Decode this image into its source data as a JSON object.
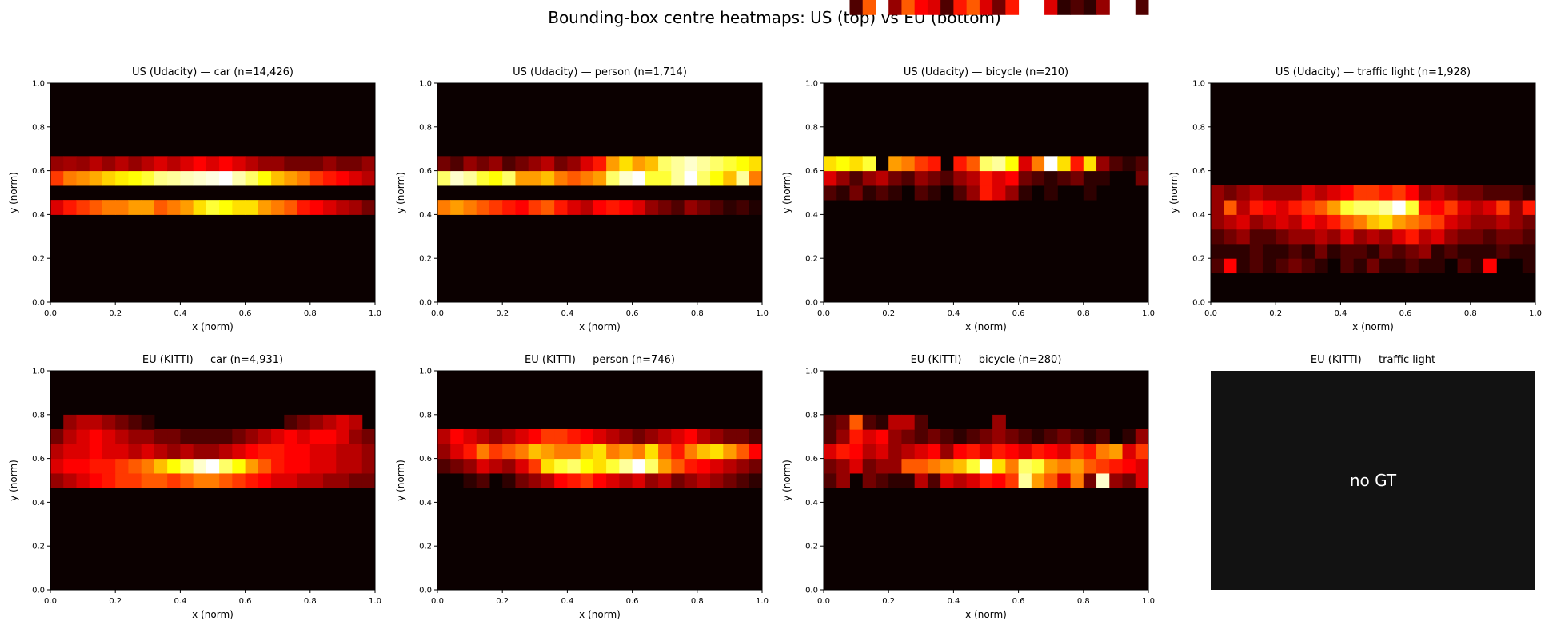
{
  "suptitle": "Bounding-box centre heatmaps: US (top) vs EU (bottom)",
  "colormap": "hot",
  "colors": {
    "background": "#ffffff",
    "no_data_panel": "#121212",
    "no_data_text": "#ffffff"
  },
  "chart_data": [
    {
      "type": "heatmap",
      "title": "US (Udacity) — car  (n=14,426)",
      "xlabel": "x (norm)",
      "ylabel": "y (norm)",
      "xlim": [
        0,
        1
      ],
      "ylim": [
        0,
        1
      ],
      "xticks": [
        "0.0",
        "0.2",
        "0.4",
        "0.6",
        "0.8",
        "1.0"
      ],
      "yticks": [
        "0.0",
        "0.2",
        "0.4",
        "0.6",
        "0.8",
        "1.0"
      ],
      "bins": [
        25,
        15
      ],
      "band": {
        "y": [
          0.4,
          0.533,
          0.6
        ],
        "rows": [
          [
            0.3,
            0.4,
            0.45,
            0.5,
            0.55,
            0.55,
            0.6,
            0.6,
            0.5,
            0.55,
            0.6,
            0.7,
            0.8,
            0.75,
            0.7,
            0.7,
            0.6,
            0.55,
            0.5,
            0.4,
            0.35,
            0.3,
            0.25,
            0.22,
            0.15
          ],
          [
            0.45,
            0.55,
            0.58,
            0.62,
            0.68,
            0.72,
            0.75,
            0.8,
            0.88,
            0.9,
            0.93,
            0.95,
            0.97,
            1.0,
            0.92,
            0.85,
            0.75,
            0.65,
            0.6,
            0.55,
            0.45,
            0.4,
            0.35,
            0.3,
            0.25
          ],
          [
            0.2,
            0.22,
            0.2,
            0.25,
            0.2,
            0.25,
            0.2,
            0.25,
            0.3,
            0.25,
            0.3,
            0.35,
            0.3,
            0.35,
            0.3,
            0.25,
            0.2,
            0.2,
            0.15,
            0.15,
            0.15,
            0.2,
            0.15,
            0.15,
            0.2
          ]
        ]
      }
    },
    {
      "type": "heatmap",
      "title": "US (Udacity) — person  (n=1,714)",
      "xlabel": "x (norm)",
      "ylabel": "y (norm)",
      "xlim": [
        0,
        1
      ],
      "ylim": [
        0,
        1
      ],
      "xticks": [
        "0.0",
        "0.2",
        "0.4",
        "0.6",
        "0.8",
        "1.0"
      ],
      "yticks": [
        "0.0",
        "0.2",
        "0.4",
        "0.6",
        "0.8",
        "1.0"
      ],
      "bins": [
        25,
        15
      ],
      "band": {
        "y": [
          0.4,
          0.533,
          0.6
        ],
        "rows": [
          [
            0.55,
            0.6,
            0.55,
            0.5,
            0.45,
            0.4,
            0.35,
            0.45,
            0.5,
            0.4,
            0.3,
            0.25,
            0.35,
            0.4,
            0.35,
            0.3,
            0.2,
            0.15,
            0.1,
            0.2,
            0.15,
            0.1,
            0.05,
            0.08,
            0.03
          ],
          [
            0.85,
            0.95,
            0.9,
            0.8,
            0.75,
            0.85,
            0.6,
            0.6,
            0.65,
            0.55,
            0.5,
            0.55,
            0.6,
            0.85,
            0.95,
            1.0,
            0.8,
            0.8,
            0.9,
            1.0,
            0.85,
            0.75,
            0.65,
            0.9,
            0.55
          ],
          [
            0.15,
            0.1,
            0.2,
            0.15,
            0.2,
            0.1,
            0.15,
            0.2,
            0.25,
            0.15,
            0.2,
            0.3,
            0.4,
            0.6,
            0.7,
            0.6,
            0.65,
            0.85,
            0.9,
            0.95,
            0.9,
            0.85,
            0.8,
            0.75,
            0.7
          ]
        ]
      }
    },
    {
      "type": "heatmap",
      "title": "US (Udacity) — bicycle  (n=210)",
      "xlabel": "x (norm)",
      "ylabel": "y (norm)",
      "xlim": [
        0,
        1
      ],
      "ylim": [
        0,
        1
      ],
      "xticks": [
        "0.0",
        "0.2",
        "0.4",
        "0.6",
        "0.8",
        "1.0"
      ],
      "yticks": [
        "0.0",
        "0.2",
        "0.4",
        "0.6",
        "0.8",
        "1.0"
      ],
      "bins": [
        25,
        15
      ],
      "band": {
        "y": [
          0.467,
          0.533,
          0.6
        ],
        "rows": [
          [
            0.1,
            0.05,
            0.15,
            0.05,
            0.1,
            0.05,
            0.0,
            0.1,
            0.05,
            0.0,
            0.1,
            0.2,
            0.4,
            0.3,
            0.2,
            0.05,
            0.0,
            0.05,
            0.0,
            0.0,
            0.05,
            0.0,
            0.0,
            0.0,
            0.0
          ],
          [
            0.3,
            0.2,
            0.1,
            0.2,
            0.25,
            0.15,
            0.1,
            0.2,
            0.15,
            0.1,
            0.2,
            0.25,
            0.4,
            0.3,
            0.35,
            0.15,
            0.1,
            0.05,
            0.1,
            0.15,
            0.05,
            0.05,
            0.0,
            0.0,
            0.15
          ],
          [
            0.7,
            0.75,
            0.7,
            0.8,
            0.0,
            0.6,
            0.55,
            0.45,
            0.4,
            0.0,
            0.4,
            0.5,
            0.85,
            0.9,
            0.75,
            0.3,
            0.55,
            1.0,
            0.7,
            0.4,
            0.7,
            0.2,
            0.1,
            0.05,
            0.1
          ],
          [
            0.0,
            0.0,
            0.1,
            0.5,
            0.0,
            0.2,
            0.5,
            0.35,
            0.3,
            0.1,
            0.4,
            0.5,
            0.3,
            0.15,
            0.4,
            0.0,
            0.0,
            0.3,
            0.05,
            0.1,
            0.05,
            0.2,
            0.0,
            0.0,
            0.1
          ]
        ]
      }
    },
    {
      "type": "heatmap",
      "title": "US (Udacity) — traffic light  (n=1,928)",
      "xlabel": "x (norm)",
      "ylabel": "y (norm)",
      "xlim": [
        0,
        1
      ],
      "ylim": [
        0,
        1
      ],
      "xticks": [
        "0.0",
        "0.2",
        "0.4",
        "0.6",
        "0.8",
        "1.0"
      ],
      "yticks": [
        "0.0",
        "0.2",
        "0.4",
        "0.6",
        "0.8",
        "1.0"
      ],
      "bins": [
        25,
        15
      ],
      "band": {
        "y": [
          0.133,
          0.2,
          0.267,
          0.333,
          0.4,
          0.467
        ],
        "rows": [
          [
            0.1,
            0.35,
            0.05,
            0.1,
            0.05,
            0.1,
            0.15,
            0.1,
            0.05,
            0.0,
            0.1,
            0.05,
            0.15,
            0.05,
            0.05,
            0.1,
            0.05,
            0.05,
            0.0,
            0.1,
            0.05,
            0.35,
            0.0,
            0.0,
            0.05
          ],
          [
            0.05,
            0.05,
            0.05,
            0.1,
            0.05,
            0.05,
            0.1,
            0.05,
            0.15,
            0.05,
            0.1,
            0.1,
            0.05,
            0.15,
            0.1,
            0.15,
            0.2,
            0.05,
            0.1,
            0.05,
            0.05,
            0.05,
            0.1,
            0.05,
            0.05
          ],
          [
            0.1,
            0.15,
            0.2,
            0.1,
            0.1,
            0.15,
            0.2,
            0.2,
            0.25,
            0.2,
            0.3,
            0.2,
            0.25,
            0.2,
            0.3,
            0.4,
            0.25,
            0.3,
            0.2,
            0.15,
            0.15,
            0.1,
            0.15,
            0.15,
            0.1
          ],
          [
            0.2,
            0.25,
            0.3,
            0.2,
            0.25,
            0.3,
            0.25,
            0.35,
            0.3,
            0.4,
            0.5,
            0.55,
            0.65,
            0.7,
            0.6,
            0.55,
            0.5,
            0.45,
            0.3,
            0.25,
            0.2,
            0.2,
            0.25,
            0.2,
            0.15
          ],
          [
            0.2,
            0.5,
            0.25,
            0.4,
            0.35,
            0.3,
            0.4,
            0.45,
            0.5,
            0.6,
            0.8,
            0.85,
            0.85,
            0.9,
            1.0,
            0.8,
            0.4,
            0.35,
            0.45,
            0.3,
            0.25,
            0.3,
            0.45,
            0.2,
            0.4
          ],
          [
            0.2,
            0.15,
            0.2,
            0.25,
            0.2,
            0.2,
            0.2,
            0.3,
            0.25,
            0.3,
            0.35,
            0.45,
            0.45,
            0.4,
            0.45,
            0.35,
            0.2,
            0.25,
            0.2,
            0.15,
            0.15,
            0.1,
            0.1,
            0.1,
            0.05
          ]
        ]
      }
    },
    {
      "type": "heatmap",
      "title": "EU (KITTI) — car  (n=4,931)",
      "xlabel": "x (norm)",
      "ylabel": "y (norm)",
      "xlim": [
        0,
        1
      ],
      "ylim": [
        0,
        1
      ],
      "xticks": [
        "0.0",
        "0.2",
        "0.4",
        "0.6",
        "0.8",
        "1.0"
      ],
      "yticks": [
        "0.0",
        "0.2",
        "0.4",
        "0.6",
        "0.8",
        "1.0"
      ],
      "bins": [
        25,
        15
      ],
      "band": {
        "y": [
          0.467,
          0.533,
          0.6,
          0.667,
          0.733
        ],
        "rows": [
          [
            0.2,
            0.25,
            0.3,
            0.35,
            0.4,
            0.45,
            0.45,
            0.5,
            0.5,
            0.45,
            0.5,
            0.55,
            0.55,
            0.5,
            0.45,
            0.4,
            0.35,
            0.3,
            0.3,
            0.25,
            0.25,
            0.2,
            0.2,
            0.15,
            0.15
          ],
          [
            0.3,
            0.35,
            0.35,
            0.4,
            0.4,
            0.45,
            0.5,
            0.55,
            0.65,
            0.75,
            0.85,
            0.95,
            1.0,
            0.85,
            0.75,
            0.6,
            0.5,
            0.4,
            0.35,
            0.35,
            0.3,
            0.3,
            0.25,
            0.25,
            0.2
          ],
          [
            0.25,
            0.3,
            0.3,
            0.35,
            0.3,
            0.3,
            0.25,
            0.3,
            0.25,
            0.2,
            0.25,
            0.2,
            0.2,
            0.25,
            0.3,
            0.35,
            0.4,
            0.4,
            0.35,
            0.35,
            0.3,
            0.3,
            0.25,
            0.25,
            0.2
          ],
          [
            0.15,
            0.25,
            0.3,
            0.35,
            0.3,
            0.25,
            0.2,
            0.2,
            0.15,
            0.15,
            0.1,
            0.1,
            0.1,
            0.1,
            0.15,
            0.2,
            0.25,
            0.3,
            0.35,
            0.3,
            0.35,
            0.35,
            0.3,
            0.2,
            0.15
          ],
          [
            0.0,
            0.2,
            0.25,
            0.25,
            0.2,
            0.15,
            0.1,
            0.05,
            0.0,
            0.0,
            0.0,
            0.0,
            0.0,
            0.0,
            0.0,
            0.0,
            0.0,
            0.0,
            0.1,
            0.15,
            0.2,
            0.25,
            0.3,
            0.25,
            0.0
          ]
        ]
      }
    },
    {
      "type": "heatmap",
      "title": "EU (KITTI) — person  (n=746)",
      "xlabel": "x (norm)",
      "ylabel": "y (norm)",
      "xlim": [
        0,
        1
      ],
      "ylim": [
        0,
        1
      ],
      "xticks": [
        "0.0",
        "0.2",
        "0.4",
        "0.6",
        "0.8",
        "1.0"
      ],
      "yticks": [
        "0.0",
        "0.2",
        "0.4",
        "0.6",
        "0.8",
        "1.0"
      ],
      "bins": [
        25,
        15
      ],
      "band": {
        "y": [
          0.467,
          0.533,
          0.6,
          0.667
        ],
        "rows": [
          [
            0.0,
            0.0,
            0.05,
            0.1,
            0.0,
            0.05,
            0.15,
            0.2,
            0.25,
            0.35,
            0.4,
            0.45,
            0.35,
            0.3,
            0.25,
            0.3,
            0.2,
            0.25,
            0.15,
            0.2,
            0.25,
            0.2,
            0.15,
            0.1,
            0.05
          ],
          [
            0.1,
            0.15,
            0.2,
            0.3,
            0.25,
            0.2,
            0.3,
            0.45,
            0.7,
            0.8,
            0.85,
            0.75,
            0.7,
            0.8,
            0.9,
            1.0,
            0.85,
            0.6,
            0.5,
            0.4,
            0.35,
            0.3,
            0.25,
            0.2,
            0.15
          ],
          [
            0.2,
            0.3,
            0.4,
            0.55,
            0.45,
            0.5,
            0.55,
            0.65,
            0.6,
            0.55,
            0.55,
            0.65,
            0.7,
            0.55,
            0.6,
            0.55,
            0.7,
            0.5,
            0.4,
            0.55,
            0.65,
            0.7,
            0.6,
            0.5,
            0.35
          ],
          [
            0.25,
            0.35,
            0.3,
            0.25,
            0.2,
            0.25,
            0.3,
            0.35,
            0.45,
            0.45,
            0.4,
            0.35,
            0.3,
            0.25,
            0.2,
            0.15,
            0.2,
            0.25,
            0.3,
            0.35,
            0.25,
            0.2,
            0.15,
            0.15,
            0.1
          ]
        ]
      }
    },
    {
      "type": "heatmap",
      "title": "EU (KITTI) — bicycle  (n=280)",
      "xlabel": "x (norm)",
      "ylabel": "y (norm)",
      "xlim": [
        0,
        1
      ],
      "ylim": [
        0,
        1
      ],
      "xticks": [
        "0.0",
        "0.2",
        "0.4",
        "0.6",
        "0.8",
        "1.0"
      ],
      "yticks": [
        "0.0",
        "0.2",
        "0.4",
        "0.6",
        "0.8",
        "1.0"
      ],
      "bins": [
        25,
        15
      ],
      "band": {
        "y": [
          0.4,
          0.467,
          0.533,
          0.6,
          0.667,
          0.733
        ],
        "rows": [
          [
            0.0,
            0.0,
            0.0,
            0.0,
            0.0,
            0.0,
            0.0,
            0.0,
            0.0,
            0.0,
            0.0,
            0.0,
            0.0,
            0.0,
            0.0,
            0.0,
            0.0,
            0.0,
            0.0,
            0.0,
            0.0,
            0.0,
            0.0,
            0.0,
            0.0
          ],
          [
            0.1,
            0.2,
            0.0,
            0.15,
            0.1,
            0.05,
            0.05,
            0.25,
            0.1,
            0.3,
            0.25,
            0.3,
            0.4,
            0.35,
            0.45,
            0.9,
            0.6,
            0.5,
            0.3,
            0.55,
            0.15,
            0.95,
            0.2,
            0.15,
            0.3
          ],
          [
            0.15,
            0.2,
            0.3,
            0.15,
            0.2,
            0.2,
            0.5,
            0.5,
            0.55,
            0.6,
            0.65,
            0.8,
            1.0,
            0.7,
            0.55,
            0.85,
            0.8,
            0.6,
            0.55,
            0.6,
            0.5,
            0.45,
            0.4,
            0.35,
            0.3
          ],
          [
            0.3,
            0.4,
            0.35,
            0.25,
            0.3,
            0.2,
            0.25,
            0.3,
            0.35,
            0.2,
            0.35,
            0.4,
            0.3,
            0.4,
            0.35,
            0.3,
            0.4,
            0.35,
            0.3,
            0.45,
            0.4,
            0.55,
            0.6,
            0.3,
            0.45
          ],
          [
            0.1,
            0.2,
            0.4,
            0.3,
            0.35,
            0.2,
            0.15,
            0.1,
            0.15,
            0.1,
            0.05,
            0.1,
            0.15,
            0.2,
            0.15,
            0.1,
            0.05,
            0.1,
            0.15,
            0.1,
            0.05,
            0.1,
            0.0,
            0.05,
            0.2
          ],
          [
            0.1,
            0.15,
            0.5,
            0.1,
            0.05,
            0.25,
            0.25,
            0.1,
            0.0,
            0.0,
            0.0,
            0.0,
            0.0,
            0.2,
            0.0,
            0.0,
            0.0,
            0.0,
            0.0,
            0.0,
            0.0,
            0.0,
            0.0,
            0.0,
            0.0
          ]
        ]
      }
    },
    {
      "type": "empty",
      "title": "EU (KITTI) — traffic light",
      "message": "no GT"
    }
  ]
}
